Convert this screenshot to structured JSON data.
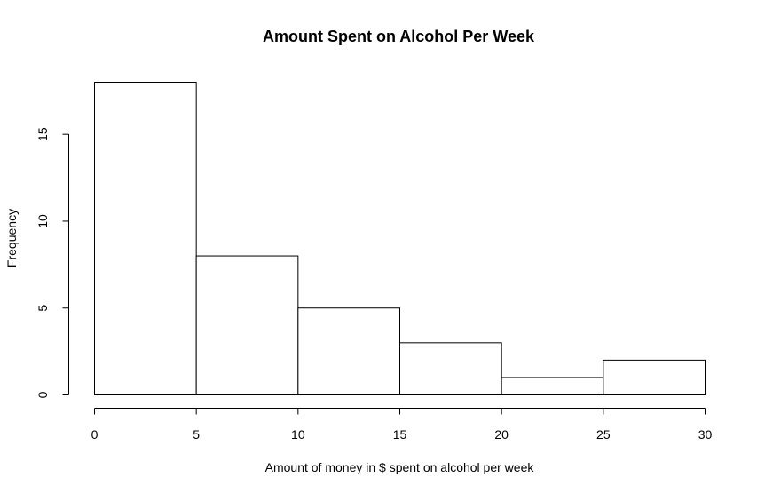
{
  "chart_data": {
    "type": "bar",
    "title": "Amount Spent on Alcohol Per Week",
    "xlabel": "Amount of money in $ spent on alcohol per week",
    "ylabel": "Frequency",
    "bins": [
      {
        "start": 0,
        "end": 5,
        "count": 18
      },
      {
        "start": 5,
        "end": 10,
        "count": 8
      },
      {
        "start": 10,
        "end": 15,
        "count": 5
      },
      {
        "start": 15,
        "end": 20,
        "count": 3
      },
      {
        "start": 20,
        "end": 25,
        "count": 1
      },
      {
        "start": 25,
        "end": 30,
        "count": 2
      }
    ],
    "xlim": [
      0,
      30
    ],
    "ylim": [
      0,
      18
    ],
    "xticks": [
      0,
      5,
      10,
      15,
      20,
      25,
      30
    ],
    "yticks": [
      0,
      5,
      10,
      15
    ],
    "grid": false,
    "colors": {
      "bar_fill": "#ffffff",
      "bar_stroke": "#000000"
    }
  }
}
